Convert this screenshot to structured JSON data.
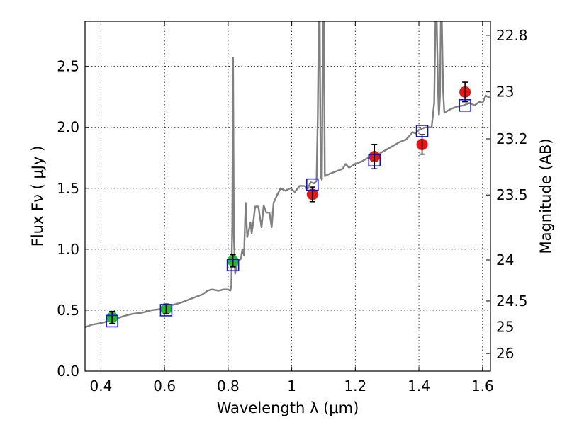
{
  "chart_data": {
    "type": "scatter",
    "xlabel": "Wavelength  λ (μm)",
    "ylabel": "Flux  Fν  ( μJy )",
    "y2label": "Magnitude (AB)",
    "xlim": [
      0.35,
      1.625
    ],
    "ylim": [
      0.0,
      2.87
    ],
    "grid": true,
    "x_ticks": [
      0.4,
      0.6,
      0.8,
      1.0,
      1.2,
      1.4,
      1.6
    ],
    "x_tick_labels": [
      "0.4",
      "0.6",
      "0.8",
      "1",
      "1.2",
      "1.4",
      "1.6"
    ],
    "y_ticks": [
      0.0,
      0.5,
      1.0,
      1.5,
      2.0,
      2.5
    ],
    "y_tick_labels": [
      "0.0",
      "0.5",
      "1.0",
      "1.5",
      "2.0",
      "2.5"
    ],
    "mag_ticks": [
      22.8,
      23,
      23.2,
      23.5,
      24,
      24.5,
      25,
      26
    ],
    "mag_tick_labels": [
      "22.8",
      "23",
      "23.2",
      "23.5",
      "24",
      "24.5",
      "25",
      "26"
    ],
    "colors": {
      "spectrum": "#808080",
      "observed_optical": "#22bb22",
      "observed_nir": "#ee1111",
      "model_box": "#1111cc",
      "errorbar": "#000000"
    },
    "series": [
      {
        "name": "observed_optical",
        "marker": "circle",
        "points": [
          {
            "x": 0.435,
            "y": 0.44,
            "err": 0.05
          },
          {
            "x": 0.605,
            "y": 0.51,
            "err": 0.04
          },
          {
            "x": 0.815,
            "y": 0.905,
            "err": 0.05
          }
        ]
      },
      {
        "name": "observed_nir",
        "marker": "circle",
        "points": [
          {
            "x": 1.065,
            "y": 1.45,
            "err": 0.06
          },
          {
            "x": 1.26,
            "y": 1.76,
            "err": 0.1
          },
          {
            "x": 1.41,
            "y": 1.86,
            "err": 0.08
          },
          {
            "x": 1.545,
            "y": 2.29,
            "err": 0.08
          }
        ]
      },
      {
        "name": "model_photometry",
        "marker": "open-square",
        "points": [
          {
            "x": 0.435,
            "y": 0.41
          },
          {
            "x": 0.605,
            "y": 0.5
          },
          {
            "x": 0.815,
            "y": 0.87
          },
          {
            "x": 1.065,
            "y": 1.53
          },
          {
            "x": 1.26,
            "y": 1.73
          },
          {
            "x": 1.41,
            "y": 1.97
          },
          {
            "x": 1.545,
            "y": 2.18
          }
        ]
      }
    ],
    "spectrum": [
      [
        0.35,
        0.36
      ],
      [
        0.37,
        0.38
      ],
      [
        0.39,
        0.39
      ],
      [
        0.41,
        0.4
      ],
      [
        0.43,
        0.42
      ],
      [
        0.45,
        0.43
      ],
      [
        0.47,
        0.45
      ],
      [
        0.5,
        0.47
      ],
      [
        0.53,
        0.48
      ],
      [
        0.56,
        0.5
      ],
      [
        0.59,
        0.51
      ],
      [
        0.62,
        0.54
      ],
      [
        0.65,
        0.56
      ],
      [
        0.68,
        0.59
      ],
      [
        0.7,
        0.61
      ],
      [
        0.72,
        0.63
      ],
      [
        0.735,
        0.66
      ],
      [
        0.75,
        0.67
      ],
      [
        0.77,
        0.66
      ],
      [
        0.785,
        0.67
      ],
      [
        0.8,
        0.67
      ],
      [
        0.807,
        0.66
      ],
      [
        0.81,
        0.7
      ],
      [
        0.813,
        1.2
      ],
      [
        0.8155,
        2.57
      ],
      [
        0.818,
        1.1
      ],
      [
        0.822,
        0.8
      ],
      [
        0.83,
        0.9
      ],
      [
        0.84,
        0.92
      ],
      [
        0.845,
        1.0
      ],
      [
        0.85,
        0.95
      ],
      [
        0.855,
        1.38
      ],
      [
        0.86,
        1.1
      ],
      [
        0.865,
        1.15
      ],
      [
        0.87,
        1.22
      ],
      [
        0.874,
        1.13
      ],
      [
        0.878,
        1.2
      ],
      [
        0.885,
        1.35
      ],
      [
        0.895,
        1.35
      ],
      [
        0.905,
        1.18
      ],
      [
        0.912,
        1.36
      ],
      [
        0.92,
        1.3
      ],
      [
        0.93,
        1.3
      ],
      [
        0.937,
        1.18
      ],
      [
        0.943,
        1.38
      ],
      [
        0.955,
        1.45
      ],
      [
        0.965,
        1.5
      ],
      [
        0.98,
        1.48
      ],
      [
        0.995,
        1.5
      ],
      [
        1.01,
        1.47
      ],
      [
        1.025,
        1.52
      ],
      [
        1.04,
        1.52
      ],
      [
        1.05,
        1.5
      ],
      [
        1.06,
        1.55
      ],
      [
        1.07,
        1.54
      ],
      [
        1.078,
        1.56
      ],
      [
        1.082,
        2.1
      ],
      [
        1.085,
        2.87
      ],
      [
        1.088,
        2.87
      ],
      [
        1.091,
        1.6
      ],
      [
        1.095,
        1.57
      ],
      [
        1.098,
        2.87
      ],
      [
        1.101,
        2.87
      ],
      [
        1.104,
        1.6
      ],
      [
        1.12,
        1.62
      ],
      [
        1.14,
        1.64
      ],
      [
        1.16,
        1.66
      ],
      [
        1.17,
        1.7
      ],
      [
        1.18,
        1.67
      ],
      [
        1.2,
        1.7
      ],
      [
        1.22,
        1.72
      ],
      [
        1.24,
        1.75
      ],
      [
        1.26,
        1.76
      ],
      [
        1.28,
        1.79
      ],
      [
        1.3,
        1.82
      ],
      [
        1.32,
        1.85
      ],
      [
        1.34,
        1.88
      ],
      [
        1.36,
        1.9
      ],
      [
        1.37,
        1.93
      ],
      [
        1.38,
        1.96
      ],
      [
        1.39,
        1.95
      ],
      [
        1.4,
        1.98
      ],
      [
        1.42,
        2.0
      ],
      [
        1.44,
        2.0
      ],
      [
        1.448,
        2.2
      ],
      [
        1.452,
        2.87
      ],
      [
        1.456,
        2.87
      ],
      [
        1.46,
        2.3
      ],
      [
        1.463,
        2.1
      ],
      [
        1.466,
        2.25
      ],
      [
        1.469,
        2.87
      ],
      [
        1.472,
        2.87
      ],
      [
        1.476,
        2.3
      ],
      [
        1.48,
        2.12
      ],
      [
        1.5,
        2.15
      ],
      [
        1.52,
        2.17
      ],
      [
        1.54,
        2.18
      ],
      [
        1.56,
        2.2
      ],
      [
        1.575,
        2.18
      ],
      [
        1.59,
        2.21
      ],
      [
        1.6,
        2.2
      ],
      [
        1.61,
        2.26
      ],
      [
        1.625,
        2.24
      ]
    ]
  }
}
